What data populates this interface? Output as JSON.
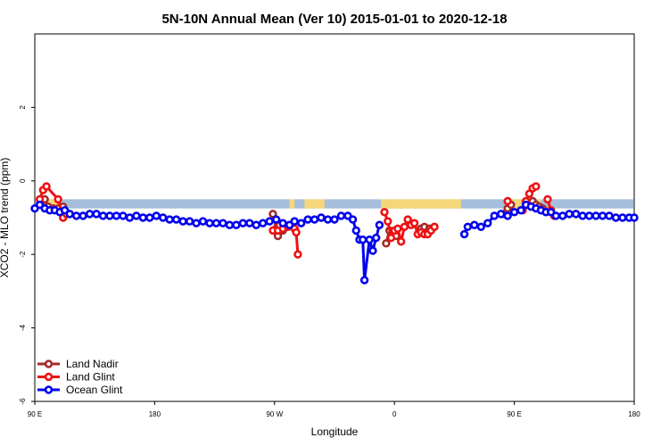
{
  "chart_data": {
    "type": "line",
    "title": "5N-10N Annual Mean (Ver 10)   2015-01-01 to 2020-12-18",
    "xlabel": "Longitude",
    "ylabel": "XCO2 - MLO trend (ppm)",
    "xlim": [
      -90,
      270
    ],
    "ylim": [
      -6,
      4
    ],
    "x_ticks": [
      {
        "value": -90,
        "label": "90 E"
      },
      {
        "value": -18,
        "label": "180"
      },
      {
        "value": 54,
        "label": "90 W"
      },
      {
        "value": 126,
        "label": "0"
      },
      {
        "value": 198,
        "label": "90 E"
      },
      {
        "value": 270,
        "label": "180"
      }
    ],
    "y_ticks": [
      -6,
      -4,
      -2,
      0,
      2
    ],
    "grid": false,
    "legend_position": "bottom-left",
    "band": {
      "y_min": -0.75,
      "y_max": -0.5,
      "ocean_color": "#a6bedc",
      "land_color": "#f5d77a"
    },
    "land_ranges": [
      [
        -85,
        -76
      ],
      [
        63,
        66
      ],
      [
        72,
        84
      ],
      [
        118,
        166
      ],
      [
        195,
        202
      ],
      [
        212,
        214
      ]
    ],
    "series": [
      {
        "name": "Land Nadir",
        "color": "#a52a2a",
        "segments": [
          [
            [
              -86,
              -0.55
            ],
            [
              -84,
              -0.5
            ],
            [
              -82,
              -0.7
            ],
            [
              -79,
              -0.75
            ],
            [
              -76,
              -0.75
            ],
            [
              -73,
              -0.7
            ]
          ],
          [
            [
              53,
              -0.9
            ],
            [
              55,
              -1.3
            ],
            [
              56,
              -1.5
            ],
            [
              59,
              -1.35
            ],
            [
              61,
              -1.25
            ]
          ],
          [
            [
              121,
              -1.7
            ],
            [
              123,
              -1.35
            ],
            [
              125,
              -1.4
            ],
            [
              127,
              -1.5
            ]
          ],
          [
            [
              142,
              -1.3
            ],
            [
              144,
              -1.25
            ],
            [
              147,
              -1.3
            ],
            [
              150,
              -1.25
            ]
          ],
          [
            [
              192,
              -0.9
            ],
            [
              194,
              -0.75
            ],
            [
              196,
              -0.65
            ]
          ],
          [
            [
              209,
              -0.55
            ],
            [
              211,
              -0.65
            ],
            [
              213,
              -0.7
            ],
            [
              215,
              -0.75
            ],
            [
              217,
              -0.85
            ]
          ]
        ]
      },
      {
        "name": "Land Glint",
        "color": "#ee1111",
        "segments": [
          [
            [
              -87,
              -0.5
            ],
            [
              -85,
              -0.25
            ],
            [
              -83,
              -0.15
            ],
            [
              -76,
              -0.5
            ],
            [
              -73,
              -1.0
            ],
            [
              -71,
              -0.9
            ]
          ],
          [
            [
              53,
              -1.35
            ],
            [
              56,
              -1.35
            ],
            [
              57,
              -1.2
            ],
            [
              59,
              -1.3
            ],
            [
              62,
              -1.25
            ]
          ],
          [
            [
              66,
              -1.3
            ],
            [
              67,
              -1.4
            ],
            [
              68,
              -2.0
            ]
          ],
          [
            [
              120,
              -0.85
            ],
            [
              122,
              -1.1
            ],
            [
              124,
              -1.55
            ],
            [
              126,
              -1.35
            ],
            [
              128,
              -1.3
            ],
            [
              130,
              -1.65
            ],
            [
              132,
              -1.25
            ],
            [
              134,
              -1.05
            ],
            [
              136,
              -1.2
            ],
            [
              138,
              -1.15
            ],
            [
              140,
              -1.45
            ],
            [
              142,
              -1.4
            ],
            [
              144,
              -1.45
            ],
            [
              146,
              -1.45
            ],
            [
              148,
              -1.35
            ],
            [
              150,
              -1.25
            ]
          ],
          [
            [
              194,
              -0.55
            ]
          ],
          [
            [
              203,
              -0.8
            ],
            [
              205,
              -0.55
            ],
            [
              207,
              -0.35
            ],
            [
              209,
              -0.2
            ],
            [
              211,
              -0.15
            ]
          ],
          [
            [
              218,
              -0.5
            ],
            [
              220,
              -0.8
            ],
            [
              222,
              -0.95
            ]
          ]
        ]
      },
      {
        "name": "Ocean Glint",
        "color": "#0000ee",
        "segments": [
          [
            [
              -90,
              -0.75
            ],
            [
              -87,
              -0.65
            ],
            [
              -84,
              -0.75
            ],
            [
              -81,
              -0.8
            ],
            [
              -78,
              -0.8
            ],
            [
              -75,
              -0.85
            ],
            [
              -72,
              -0.8
            ],
            [
              -69,
              -0.9
            ],
            [
              -65,
              -0.95
            ],
            [
              -61,
              -0.95
            ],
            [
              -57,
              -0.9
            ],
            [
              -53,
              -0.9
            ],
            [
              -49,
              -0.95
            ],
            [
              -45,
              -0.95
            ],
            [
              -41,
              -0.95
            ],
            [
              -37,
              -0.95
            ],
            [
              -33,
              -1.0
            ],
            [
              -29,
              -0.95
            ],
            [
              -25,
              -1.0
            ],
            [
              -21,
              -1.0
            ],
            [
              -17,
              -0.95
            ],
            [
              -13,
              -1.0
            ],
            [
              -9,
              -1.05
            ],
            [
              -5,
              -1.05
            ],
            [
              -1,
              -1.1
            ],
            [
              3,
              -1.1
            ],
            [
              7,
              -1.15
            ],
            [
              11,
              -1.1
            ],
            [
              15,
              -1.15
            ],
            [
              19,
              -1.15
            ],
            [
              23,
              -1.15
            ],
            [
              27,
              -1.2
            ],
            [
              31,
              -1.2
            ],
            [
              35,
              -1.15
            ],
            [
              39,
              -1.15
            ],
            [
              43,
              -1.2
            ],
            [
              47,
              -1.15
            ],
            [
              51,
              -1.1
            ],
            [
              55,
              -1.05
            ],
            [
              59,
              -1.15
            ],
            [
              63,
              -1.2
            ],
            [
              66,
              -1.1
            ],
            [
              70,
              -1.15
            ],
            [
              74,
              -1.05
            ],
            [
              78,
              -1.05
            ],
            [
              82,
              -1.0
            ],
            [
              86,
              -1.05
            ],
            [
              90,
              -1.05
            ],
            [
              94,
              -0.95
            ],
            [
              98,
              -0.95
            ],
            [
              101,
              -1.05
            ],
            [
              103,
              -1.35
            ],
            [
              105,
              -1.6
            ],
            [
              107,
              -1.6
            ],
            [
              108,
              -2.7
            ],
            [
              111,
              -1.6
            ],
            [
              113,
              -1.9
            ],
            [
              115,
              -1.55
            ],
            [
              117,
              -1.2
            ]
          ],
          [
            [
              168,
              -1.45
            ],
            [
              170,
              -1.25
            ],
            [
              174,
              -1.2
            ],
            [
              178,
              -1.25
            ],
            [
              182,
              -1.15
            ],
            [
              186,
              -0.95
            ],
            [
              190,
              -0.9
            ],
            [
              194,
              -0.95
            ],
            [
              198,
              -0.85
            ],
            [
              202,
              -0.8
            ],
            [
              205,
              -0.65
            ],
            [
              208,
              -0.7
            ],
            [
              211,
              -0.75
            ],
            [
              214,
              -0.8
            ],
            [
              217,
              -0.85
            ],
            [
              220,
              -0.85
            ],
            [
              223,
              -0.95
            ],
            [
              227,
              -0.95
            ],
            [
              231,
              -0.9
            ],
            [
              235,
              -0.9
            ],
            [
              239,
              -0.95
            ],
            [
              243,
              -0.95
            ],
            [
              247,
              -0.95
            ],
            [
              251,
              -0.95
            ],
            [
              255,
              -0.95
            ],
            [
              259,
              -1.0
            ],
            [
              263,
              -1.0
            ],
            [
              267,
              -1.0
            ],
            [
              270,
              -1.0
            ]
          ]
        ]
      }
    ]
  }
}
